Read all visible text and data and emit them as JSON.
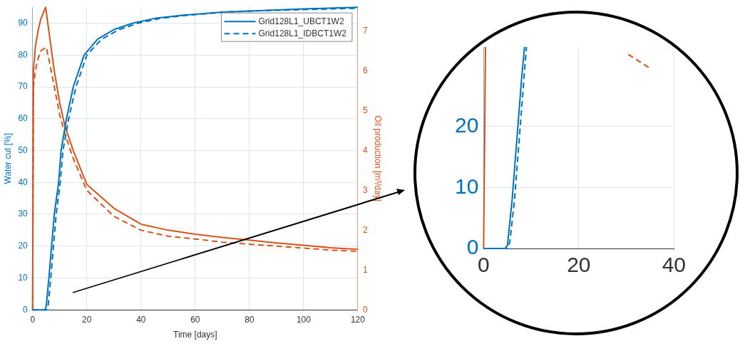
{
  "chart_data": [
    {
      "type": "line",
      "xlabel": "Time [days]",
      "ylabel": "Water cut [%]",
      "y2label": "Oil production [m³/day]",
      "xlim": [
        0,
        120
      ],
      "xticks": [
        0,
        20,
        40,
        60,
        80,
        100,
        120
      ],
      "ylim": [
        0,
        95
      ],
      "yticks": [
        0,
        10,
        20,
        30,
        40,
        50,
        60,
        70,
        80,
        90
      ],
      "y2lim": [
        0,
        7.6
      ],
      "y2ticks": [
        0,
        1,
        2,
        3,
        4,
        5,
        6,
        7
      ],
      "grid": true,
      "legend": "top right",
      "marker": "none",
      "series": [
        {
          "name": "Grid128L1_UBCT1W2",
          "color": "#0072bd",
          "line_style": "solid",
          "x": [
            0,
            4.5,
            5,
            6,
            7,
            8,
            9.6,
            10.5,
            12.5,
            15,
            19,
            24,
            30,
            37,
            45,
            55,
            70,
            85,
            100,
            120
          ],
          "values": [
            0,
            0,
            1,
            10,
            20,
            30,
            40,
            50,
            60,
            70,
            80,
            85,
            88,
            90,
            91.5,
            92.5,
            93.5,
            94,
            94.5,
            95
          ]
        },
        {
          "name": "Grid128L1_IDBCT1W2",
          "color": "#0072bd",
          "line_style": "dashed",
          "x": [
            0,
            5.2,
            5.7,
            6.7,
            7.7,
            8.7,
            10.2,
            11.2,
            13.3,
            16,
            20,
            25.5,
            32,
            39,
            47,
            57,
            72,
            87,
            102,
            120
          ],
          "values": [
            0,
            0,
            1,
            10,
            20,
            30,
            40,
            50,
            60,
            70,
            80,
            85,
            88,
            90,
            91.5,
            92.5,
            93.5,
            94,
            94.3,
            94.7
          ]
        },
        {
          "color": "#d95319",
          "axis": "y2",
          "line_style": "solid",
          "x": [
            0,
            0.3,
            1,
            2,
            3,
            4.8,
            6,
            8,
            10,
            12,
            15,
            20,
            30,
            40,
            50,
            60,
            70,
            80,
            90,
            100,
            110,
            120
          ],
          "values": [
            0,
            6.0,
            6.6,
            7.0,
            7.3,
            7.6,
            7.0,
            6.0,
            5.2,
            4.6,
            4.0,
            3.15,
            2.55,
            2.15,
            2.0,
            1.9,
            1.82,
            1.75,
            1.68,
            1.62,
            1.56,
            1.52
          ]
        },
        {
          "color": "#d95319",
          "axis": "y2",
          "line_style": "dashed",
          "x": [
            0,
            0.3,
            1,
            2,
            3,
            5,
            6,
            8,
            10,
            12,
            15,
            20,
            30,
            40,
            50,
            60,
            70,
            80,
            90,
            100,
            110,
            120
          ],
          "values": [
            0,
            5.6,
            6.0,
            6.3,
            6.5,
            6.6,
            6.3,
            5.6,
            4.9,
            4.4,
            3.8,
            3.0,
            2.35,
            2.0,
            1.85,
            1.78,
            1.7,
            1.65,
            1.6,
            1.55,
            1.5,
            1.47
          ]
        }
      ]
    },
    {
      "type": "line",
      "xlim": [
        0,
        40
      ],
      "xticks": [
        0,
        20,
        40
      ],
      "ylim": [
        0,
        33
      ],
      "yticks": [
        0,
        10,
        20
      ],
      "grid": true,
      "marker": "none",
      "series": [
        {
          "color": "#0072bd",
          "line_style": "solid",
          "x": [
            0,
            4.5,
            5,
            6,
            7,
            8,
            8.6
          ],
          "values": [
            0,
            0,
            0.5,
            8,
            18,
            28,
            33
          ]
        },
        {
          "color": "#0072bd",
          "line_style": "dashed",
          "x": [
            0,
            5,
            5.5,
            6.5,
            7.5,
            8.5,
            9
          ],
          "values": [
            0,
            0,
            1,
            8,
            18,
            28,
            33
          ]
        },
        {
          "color": "#d95319",
          "line_style": "solid",
          "x": [
            0,
            0.4
          ],
          "values": [
            0,
            33
          ]
        },
        {
          "color": "#d95319",
          "line_style": "dashed",
          "x": [
            30.4,
            34.8
          ],
          "values": [
            31.8,
            29.6
          ]
        }
      ]
    }
  ]
}
